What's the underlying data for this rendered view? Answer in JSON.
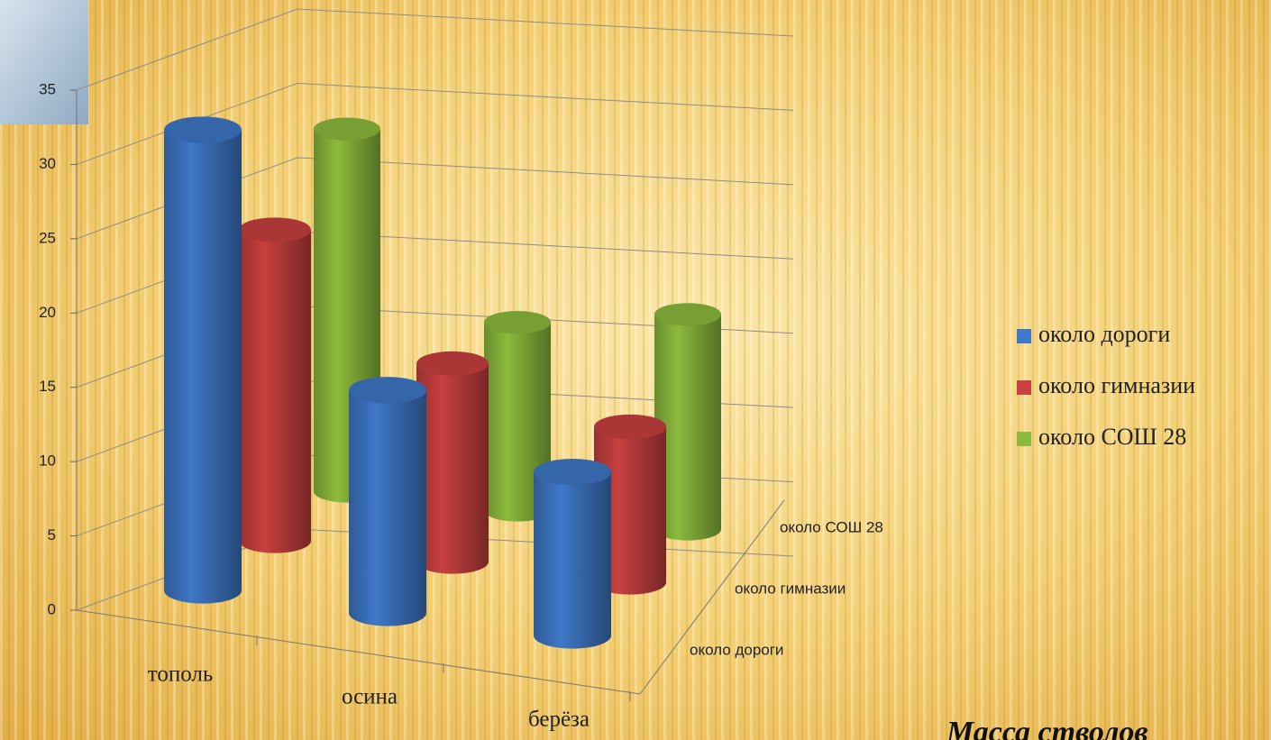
{
  "chart_data": {
    "type": "bar3d",
    "categories": [
      "тополь",
      "осина",
      "берёза"
    ],
    "series": [
      {
        "name": "около дороги",
        "color": "#3f78c8",
        "values": [
          31,
          15,
          11
        ]
      },
      {
        "name": "около гимназии",
        "color": "#c84040",
        "values": [
          22,
          14,
          11
        ]
      },
      {
        "name": "около СОШ 28",
        "color": "#8cbb3c",
        "values": [
          27,
          14,
          16
        ]
      }
    ],
    "ylim": [
      0,
      35
    ],
    "yticks": [
      0,
      5,
      10,
      15,
      20,
      25,
      30,
      35
    ],
    "grid": true,
    "annotation": "Масса стволов"
  }
}
